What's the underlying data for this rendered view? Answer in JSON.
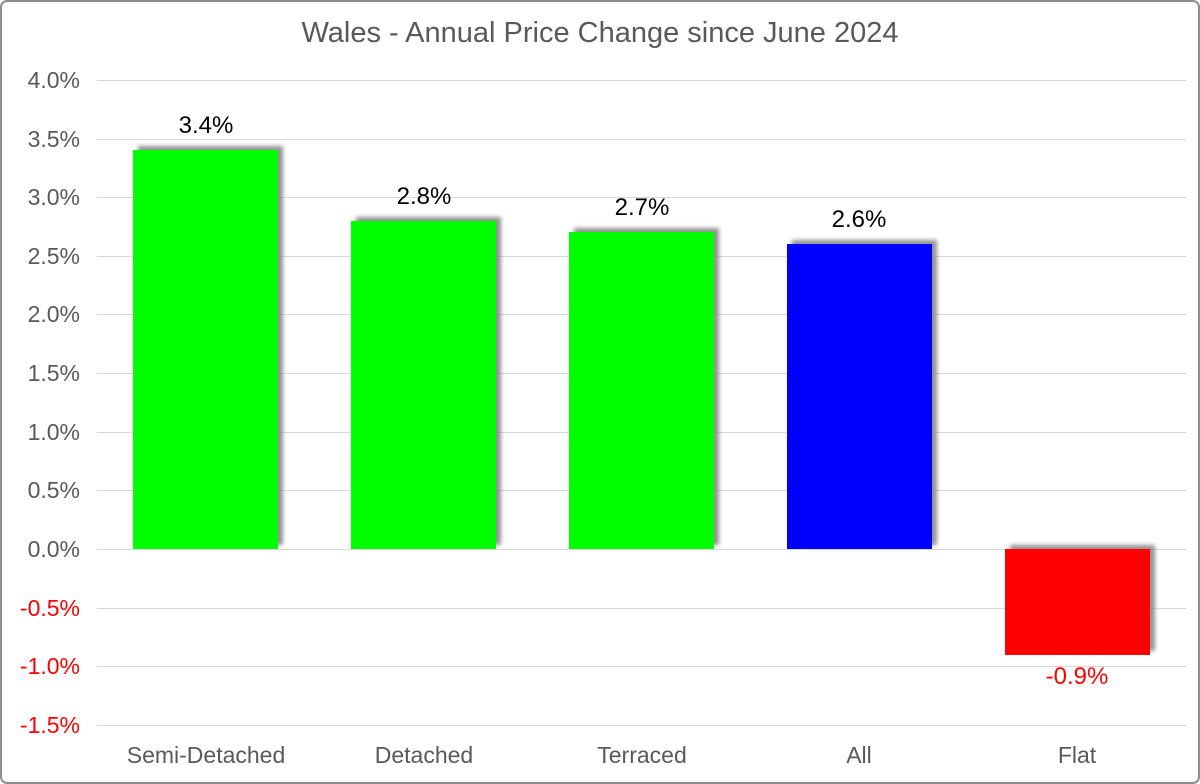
{
  "chart_data": {
    "type": "bar",
    "title": "Wales - Annual Price Change since June 2024",
    "categories": [
      "Semi-Detached",
      "Detached",
      "Terraced",
      "All",
      "Flat"
    ],
    "values": [
      3.4,
      2.8,
      2.7,
      2.6,
      -0.9
    ],
    "value_labels": [
      "3.4%",
      "2.8%",
      "2.7%",
      "2.6%",
      "-0.9%"
    ],
    "bar_colors": [
      "#00ff00",
      "#00ff00",
      "#00ff00",
      "#0000ff",
      "#ff0000"
    ],
    "xlabel": "",
    "ylabel": "",
    "ylim": [
      -1.5,
      4.0
    ],
    "ystep": 0.5,
    "y_ticks": [
      {
        "value": 4.0,
        "label": "4.0%"
      },
      {
        "value": 3.5,
        "label": "3.5%"
      },
      {
        "value": 3.0,
        "label": "3.0%"
      },
      {
        "value": 2.5,
        "label": "2.5%"
      },
      {
        "value": 2.0,
        "label": "2.0%"
      },
      {
        "value": 1.5,
        "label": "1.5%"
      },
      {
        "value": 1.0,
        "label": "1.0%"
      },
      {
        "value": 0.5,
        "label": "0.5%"
      },
      {
        "value": 0.0,
        "label": "0.0%"
      },
      {
        "value": -0.5,
        "label": "-0.5%"
      },
      {
        "value": -1.0,
        "label": "-1.0%"
      },
      {
        "value": -1.5,
        "label": "-1.5%"
      }
    ],
    "grid": true,
    "legend": "none",
    "colors": {
      "axis_text": "#595959",
      "negative_text": "#ff0000",
      "data_label": "#000000",
      "gridline": "#d9d9d9",
      "frame_border": "#8e8e8e",
      "background": "#ffffff"
    }
  }
}
